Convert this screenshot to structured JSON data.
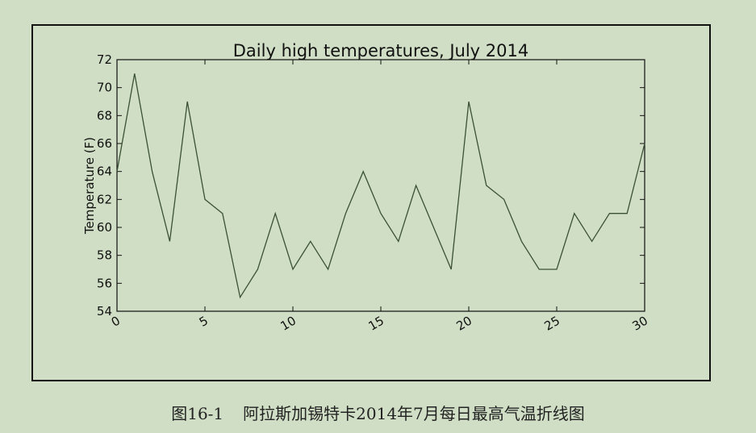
{
  "top_text": "",
  "caption": {
    "number": "图16-1",
    "text": "阿拉斯加锡特卡2014年7月每日最高气温折线图"
  },
  "chart_data": {
    "type": "line",
    "title": "Daily high temperatures, July 2014",
    "xlabel": "",
    "ylabel": "Temperature (F)",
    "xlim": [
      0,
      30
    ],
    "ylim": [
      54,
      72
    ],
    "xticks": [
      0,
      5,
      10,
      15,
      20,
      25,
      30
    ],
    "yticks": [
      54,
      56,
      58,
      60,
      62,
      64,
      66,
      68,
      70,
      72
    ],
    "grid": false,
    "line_color": "#3b5136",
    "series": [
      {
        "x": [
          0,
          1,
          2,
          3,
          4,
          5,
          6,
          7,
          8,
          9,
          10,
          11,
          12,
          13,
          14,
          15,
          16,
          17,
          18,
          19,
          20,
          21,
          22,
          23,
          24,
          25,
          26,
          27,
          28,
          29,
          30
        ],
        "values": [
          64,
          71,
          64,
          59,
          69,
          62,
          61,
          55,
          57,
          61,
          57,
          59,
          57,
          61,
          64,
          61,
          59,
          63,
          60,
          57,
          69,
          63,
          62,
          59,
          57,
          57,
          61,
          59,
          61,
          61,
          66
        ]
      }
    ]
  }
}
